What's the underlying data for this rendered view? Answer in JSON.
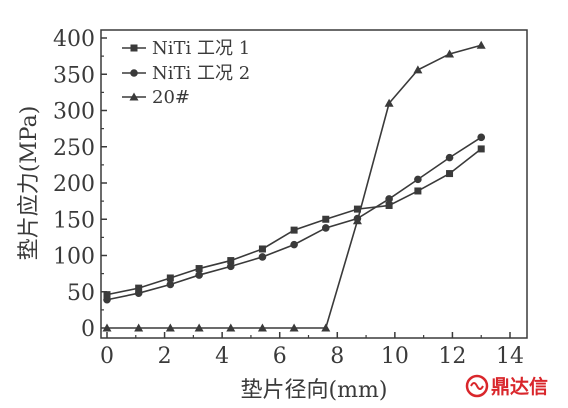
{
  "chart_data": {
    "type": "line",
    "xlabel": "垫片径向(mm)",
    "ylabel": "垫片应力(MPa)",
    "xlim": [
      0,
      14
    ],
    "ylim": [
      0,
      400
    ],
    "xticks": [
      0,
      2,
      4,
      6,
      8,
      10,
      12,
      14
    ],
    "yticks": [
      0,
      50,
      100,
      150,
      200,
      250,
      300,
      350,
      400
    ],
    "grid": false,
    "legend_position": "top-left",
    "series": [
      {
        "name": "NiTi 工况 1",
        "marker": "square",
        "x": [
          0,
          1.1,
          2.2,
          3.2,
          4.3,
          5.4,
          6.5,
          7.6,
          8.7,
          9.8,
          10.8,
          11.9,
          13.0
        ],
        "y": [
          46,
          55,
          69,
          82,
          93,
          109,
          135,
          150,
          164,
          169,
          189,
          213,
          247
        ]
      },
      {
        "name": "NiTi 工况 2",
        "marker": "circle",
        "x": [
          0,
          1.1,
          2.2,
          3.2,
          4.3,
          5.4,
          6.5,
          7.6,
          8.7,
          9.8,
          10.8,
          11.9,
          13.0
        ],
        "y": [
          39,
          48,
          60,
          73,
          85,
          98,
          115,
          138,
          151,
          178,
          205,
          235,
          263
        ]
      },
      {
        "name": "20#",
        "marker": "triangle",
        "x": [
          0,
          1.1,
          2.2,
          3.2,
          4.3,
          5.4,
          6.5,
          7.6,
          8.7,
          9.8,
          10.8,
          11.9,
          13.0
        ],
        "y": [
          0,
          0,
          0,
          0,
          0,
          0,
          0,
          0,
          148,
          310,
          356,
          378,
          390
        ]
      }
    ]
  },
  "watermark": {
    "text": "鼎达信",
    "color": "#d9262b"
  }
}
